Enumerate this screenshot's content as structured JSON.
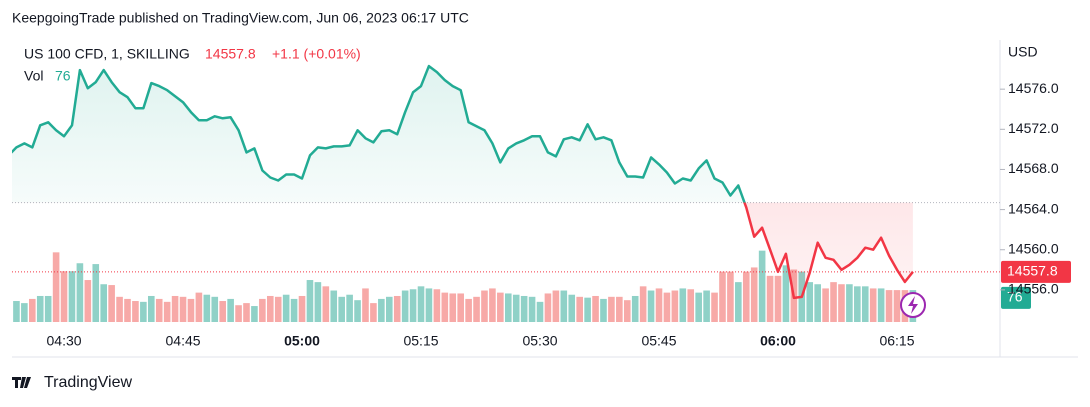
{
  "header": "KeepgoingTrade published on TradingView.com, Jun 06, 2023 06:17 UTC",
  "footer": "TradingView",
  "chart_data": {
    "type": "line",
    "title": "US 100 CFD, 1, SKILLING",
    "change": "+1.1 (+0.01%)",
    "currency": "USD",
    "baseline": 14564.7,
    "categories": [
      null,
      null,
      null,
      null,
      null,
      null,
      null,
      "04:30",
      null,
      null,
      null,
      null,
      null,
      null,
      null,
      null,
      null,
      null,
      null,
      null,
      null,
      null,
      "04:45",
      null,
      null,
      null,
      null,
      null,
      null,
      null,
      null,
      null,
      null,
      null,
      null,
      null,
      null,
      "05:00",
      null,
      null,
      null,
      null,
      null,
      null,
      null,
      null,
      null,
      null,
      null,
      null,
      null,
      null,
      "05:15",
      null,
      null,
      null,
      null,
      null,
      null,
      null,
      null,
      null,
      null,
      null,
      null,
      null,
      null,
      "05:30",
      null,
      null,
      null,
      null,
      null,
      null,
      null,
      null,
      null,
      null,
      null,
      null,
      null,
      null,
      "05:45",
      null,
      null,
      null,
      null,
      null,
      null,
      null,
      null,
      null,
      null,
      null,
      null,
      null,
      null,
      "06:00",
      null,
      null,
      null,
      null,
      null,
      null,
      null,
      null,
      null,
      null,
      null,
      null,
      null,
      null,
      "06:15",
      null,
      null
    ],
    "series": [
      {
        "name": "US 100 CFD",
        "color": "#22ab94",
        "color_below": "#f23645",
        "values": [
          14569.4,
          14570.2,
          14570.6,
          14570.2,
          14572.4,
          14572.7,
          14571.9,
          14571.3,
          14572.4,
          14577.9,
          14576.1,
          14576.7,
          14577.9,
          14576.7,
          14575.7,
          14575.2,
          14574.1,
          14574.1,
          14576.6,
          14576.3,
          14575.9,
          14575.3,
          14574.7,
          14573.7,
          14572.9,
          14572.9,
          14573.3,
          14573.1,
          14573.2,
          14571.9,
          14569.7,
          14570.1,
          14567.9,
          14567.2,
          14566.9,
          14567.5,
          14567.5,
          14567.1,
          14569.4,
          14570.2,
          14570.1,
          14570.3,
          14570.3,
          14570.4,
          14571.9,
          14571.1,
          14570.7,
          14571.8,
          14571.9,
          14571.5,
          14573.7,
          14575.7,
          14576.3,
          14578.3,
          14577.7,
          14576.9,
          14576.3,
          14575.9,
          14572.7,
          14572.3,
          14571.9,
          14570.6,
          14568.7,
          14570.1,
          14570.6,
          14570.9,
          14571.3,
          14571.3,
          14569.7,
          14569.3,
          14571.0,
          14571.2,
          14570.9,
          14572.5,
          14571.0,
          14571.2,
          14570.9,
          14568.7,
          14567.3,
          14567.3,
          14567.2,
          14569.2,
          14568.5,
          14567.7,
          14566.6,
          14567.1,
          14566.9,
          14568.1,
          14568.9,
          14567.1,
          14566.7,
          14565.4,
          14566.4,
          14564.2,
          14561.3,
          14562.2,
          14560.0,
          14557.8,
          14559.6,
          14555.2,
          14555.3,
          14557.7,
          14560.7,
          14559.2,
          14559.0,
          14558.0,
          14558.5,
          14559.2,
          14560.2,
          14560.0,
          14561.2,
          14559.4,
          14558.0,
          14556.8,
          14557.8
        ]
      },
      {
        "name": "Vol",
        "color": "#8fd1c7",
        "color_below": "#f7a9a7",
        "values": [
          45,
          50,
          45,
          55,
          62,
          62,
          166,
          121,
          121,
          140,
          100,
          138,
          90,
          88,
          60,
          55,
          50,
          48,
          62,
          55,
          48,
          62,
          60,
          55,
          70,
          65,
          60,
          50,
          55,
          40,
          45,
          38,
          55,
          62,
          60,
          65,
          55,
          62,
          100,
          95,
          85,
          75,
          60,
          65,
          52,
          80,
          45,
          55,
          60,
          62,
          75,
          78,
          85,
          80,
          78,
          70,
          68,
          68,
          55,
          60,
          75,
          80,
          70,
          68,
          65,
          62,
          60,
          48,
          68,
          75,
          75,
          65,
          60,
          58,
          62,
          55,
          60,
          60,
          52,
          62,
          85,
          75,
          80,
          70,
          75,
          80,
          78,
          70,
          75,
          70,
          120,
          120,
          95,
          120,
          130,
          170,
          110,
          110,
          135,
          125,
          120,
          95,
          90,
          80,
          95,
          90,
          90,
          85,
          85,
          80,
          80,
          76,
          76,
          76,
          76
        ]
      }
    ],
    "ylim": [
      14552.8,
      14580.4
    ],
    "yticks": [
      {
        "value": 14556,
        "label": "14556.0"
      },
      {
        "value": 14560,
        "label": "14560.0"
      },
      {
        "value": 14564,
        "label": "14564.0"
      },
      {
        "value": 14568,
        "label": "14568.0"
      },
      {
        "value": 14572,
        "label": "14572.0"
      },
      {
        "value": 14576,
        "label": "14576.0"
      }
    ],
    "volume_ylim": [
      0,
      660
    ]
  }
}
